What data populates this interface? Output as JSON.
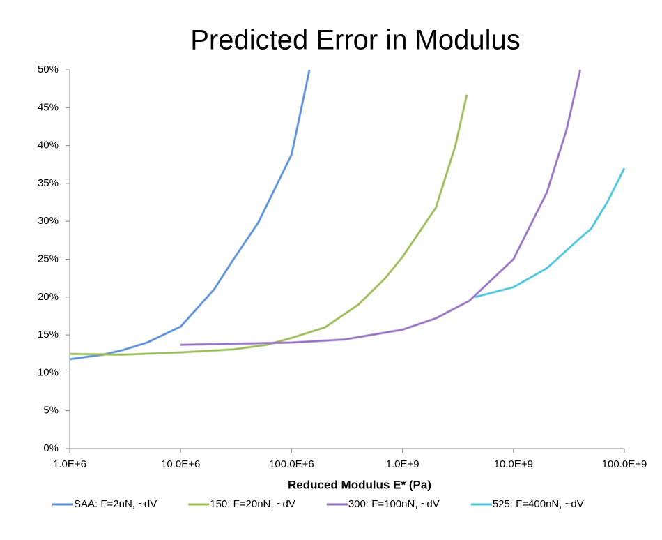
{
  "chart_data": {
    "type": "line",
    "title": "Predicted Error in Modulus",
    "x_label": "Reduced Modulus E* (Pa)",
    "xscale": "log",
    "grid": false,
    "legend": "bottom",
    "xlim": [
      1000000,
      100000000000
    ],
    "xticks": [
      {
        "value": 1000000,
        "label": "1.0E+6"
      },
      {
        "value": 10000000,
        "label": "10.0E+6"
      },
      {
        "value": 100000000,
        "label": "100.0E+6"
      },
      {
        "value": 1000000000,
        "label": "1.0E+9"
      },
      {
        "value": 10000000000,
        "label": "10.0E+9"
      },
      {
        "value": 100000000000,
        "label": "100.0E+9"
      }
    ],
    "ylim": [
      0,
      50
    ],
    "yticks": [
      {
        "value": 0,
        "label": "0%"
      },
      {
        "value": 5,
        "label": "5%"
      },
      {
        "value": 10,
        "label": "10%"
      },
      {
        "value": 15,
        "label": "15%"
      },
      {
        "value": 20,
        "label": "20%"
      },
      {
        "value": 25,
        "label": "25%"
      },
      {
        "value": 30,
        "label": "30%"
      },
      {
        "value": 35,
        "label": "35%"
      },
      {
        "value": 40,
        "label": "40%"
      },
      {
        "value": 45,
        "label": "45%"
      },
      {
        "value": 50,
        "label": "50%"
      }
    ],
    "series": [
      {
        "name": "SAA: F=2nN, ~dV",
        "color": "#5b8fd6",
        "x": [
          1000000,
          2000000,
          3000000,
          5000000,
          10000000,
          20000000,
          30000000,
          50000000,
          100000000,
          145000000
        ],
        "values": [
          11.8,
          12.4,
          13,
          14,
          16.1,
          21,
          25,
          29.8,
          38.8,
          50
        ]
      },
      {
        "name": "150: F=20nN, ~dV",
        "color": "#9bbb59",
        "x": [
          1000000,
          3000000,
          10000000,
          30000000,
          60000000,
          100000000,
          200000000,
          400000000,
          700000000,
          1000000000,
          2000000000,
          3000000000,
          3800000000
        ],
        "values": [
          12.5,
          12.4,
          12.7,
          13.1,
          13.7,
          14.6,
          16,
          19,
          22.5,
          25.3,
          31.8,
          40,
          46.7
        ]
      },
      {
        "name": "300: F=100nN, ~dV",
        "color": "#9673c0",
        "x": [
          10000000,
          100000000,
          300000000,
          1000000000,
          2000000000,
          4000000000,
          10000000000,
          20000000000,
          30000000000,
          40000000000
        ],
        "values": [
          13.7,
          14,
          14.4,
          15.7,
          17.2,
          19.5,
          25,
          33.8,
          42,
          50
        ]
      },
      {
        "name": "525: F=400nN, ~dV",
        "color": "#4bc4d9",
        "x": [
          4500000000,
          10000000000,
          20000000000,
          40000000000,
          50000000000,
          70000000000,
          100000000000
        ],
        "values": [
          20,
          21.3,
          23.8,
          27.8,
          29,
          32.5,
          37
        ]
      }
    ]
  }
}
